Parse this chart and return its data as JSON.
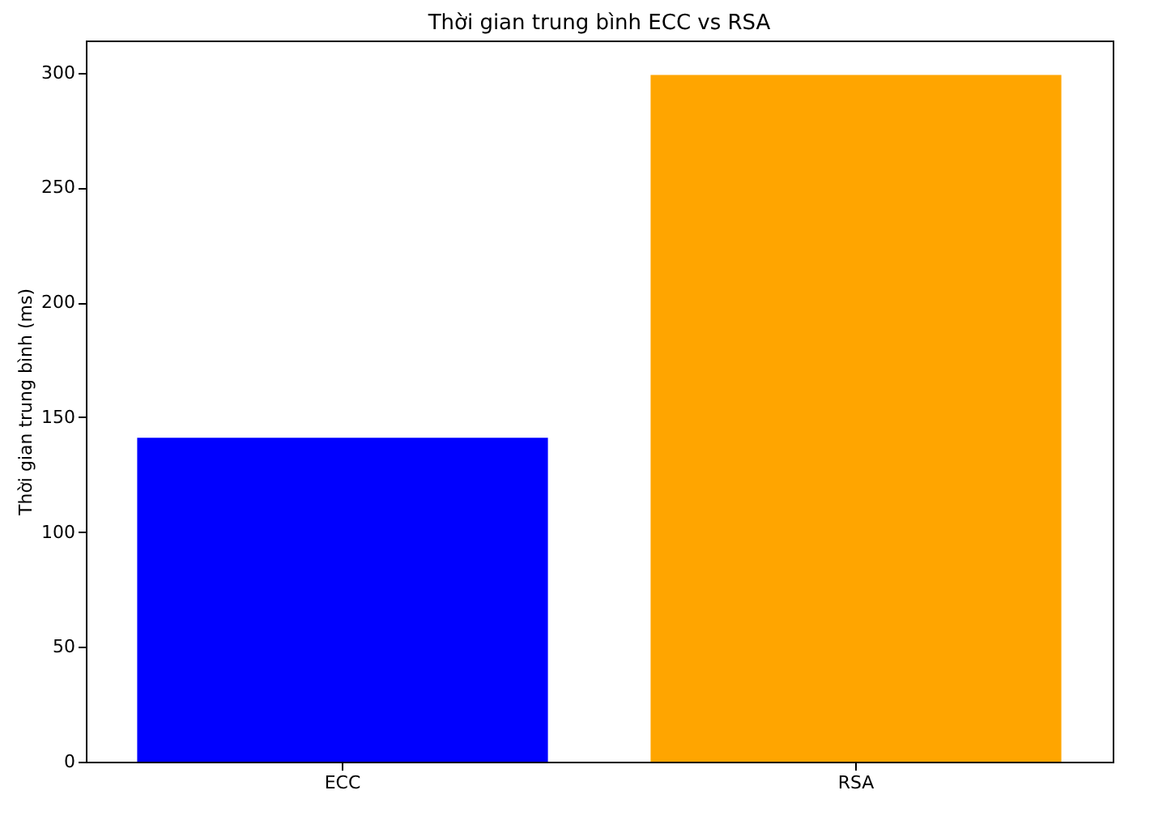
{
  "chart_data": {
    "type": "bar",
    "title": "Thời gian trung bình ECC vs RSA",
    "ylabel": "Thời gian trung bình (ms)",
    "categories": [
      "ECC",
      "RSA"
    ],
    "values": [
      141,
      299
    ],
    "colors": [
      "#0000ff",
      "#ffa500"
    ],
    "ylim": [
      0,
      314
    ],
    "yticks": [
      0,
      50,
      100,
      150,
      200,
      250,
      300
    ],
    "grid": false
  }
}
